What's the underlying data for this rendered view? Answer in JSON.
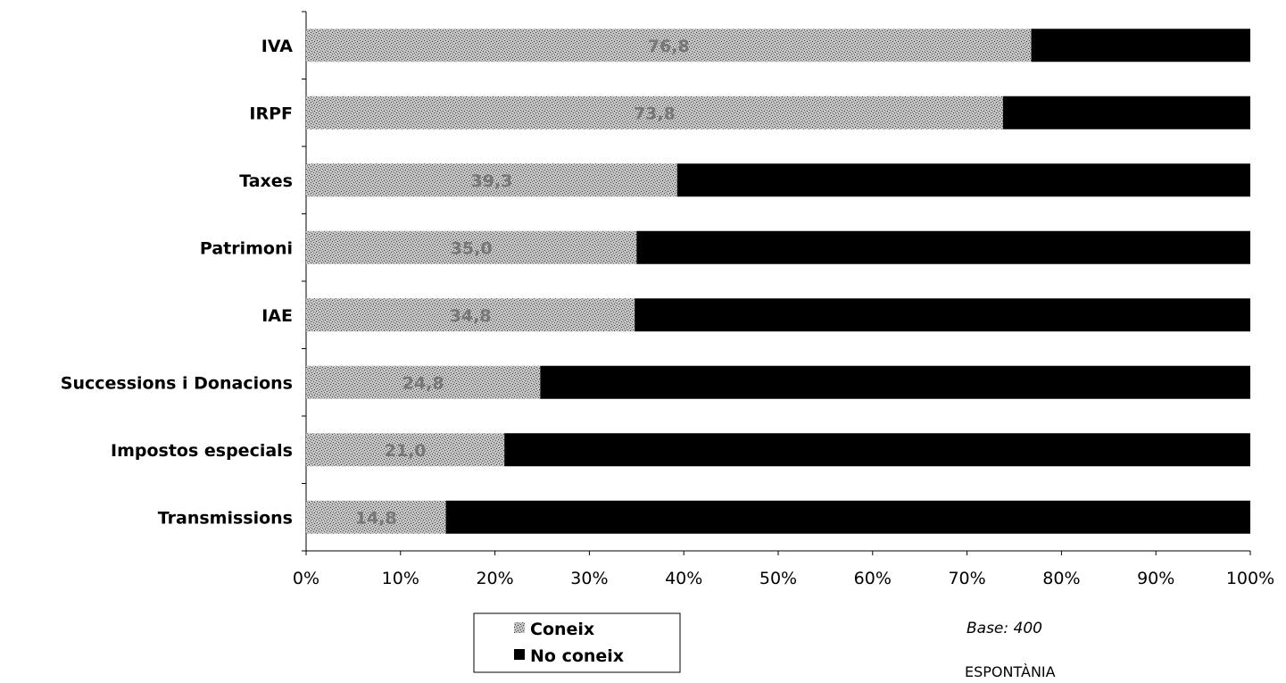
{
  "chart_data": {
    "type": "bar",
    "stacked": "percent",
    "orientation": "horizontal",
    "categories": [
      "IVA",
      "IRPF",
      "Taxes",
      "Patrimoni",
      "IAE",
      "Successions i Donacions",
      "Impostos especials",
      "Transmissions"
    ],
    "series": [
      {
        "name": "Coneix",
        "values": [
          76.8,
          73.8,
          39.3,
          35.0,
          34.8,
          24.8,
          21.0,
          14.8
        ],
        "labels": [
          "76,8",
          "73,8",
          "39,3",
          "35,0",
          "34,8",
          "24,8",
          "21,0",
          "14,8"
        ],
        "color": "#9a9a9a",
        "pattern": "speckled"
      },
      {
        "name": "No coneix",
        "values": [
          23.2,
          26.2,
          60.7,
          65.0,
          65.2,
          75.2,
          79.0,
          85.2
        ],
        "color": "#000000"
      }
    ],
    "xlim": [
      0,
      100
    ],
    "xticks": [
      "0%",
      "10%",
      "20%",
      "30%",
      "40%",
      "50%",
      "60%",
      "70%",
      "80%",
      "90%",
      "100%"
    ],
    "grid": false,
    "legend_position": "bottom-center"
  },
  "notes": {
    "base": "Base: 400",
    "mode": "ESPONTÀNIA"
  }
}
